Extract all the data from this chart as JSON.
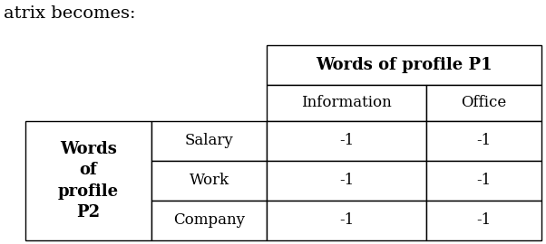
{
  "title_text": "atrix becomes:",
  "p1_header": "Words of profile P1",
  "p2_header": "Words\nof\nprofile\nP2",
  "col_headers": [
    "Information",
    "Office"
  ],
  "row_labels": [
    "Salary",
    "Work",
    "Company"
  ],
  "values": [
    [
      "-1",
      "-1"
    ],
    [
      "-1",
      "-1"
    ],
    [
      "-1",
      "-1"
    ]
  ],
  "background": "#ffffff",
  "border_color": "#000000",
  "text_color": "#000000",
  "p1_fontsize": 13,
  "header_fontsize": 12,
  "cell_fontsize": 12,
  "p2_fontsize": 13,
  "title_fontsize": 14,
  "fig_width": 6.02,
  "fig_height": 2.7,
  "dpi": 100
}
